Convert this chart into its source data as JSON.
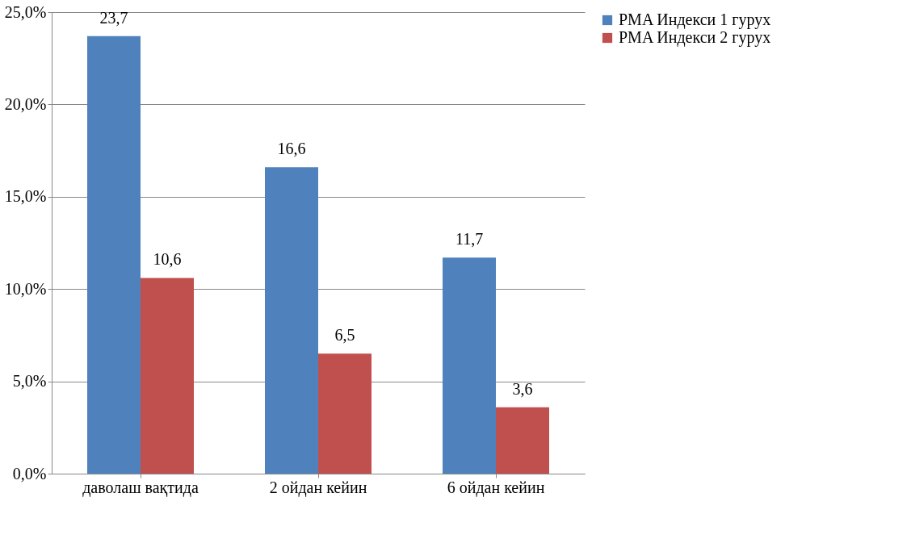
{
  "chart_data": {
    "type": "bar",
    "categories": [
      "даволаш вақтида",
      "2 ойдан кейин",
      "6 ойдан кейин"
    ],
    "series": [
      {
        "name": "PMA  Индекси  1 гурух",
        "color": "#4f81bd",
        "values": [
          23.7,
          16.6,
          11.7
        ],
        "value_labels": [
          "23,7",
          "16,6",
          "11,7"
        ]
      },
      {
        "name": "PMA  Индекси  2 гурух",
        "color": "#c0504d",
        "values": [
          10.6,
          6.5,
          3.6
        ],
        "value_labels": [
          "10,6",
          "6,5",
          "3,6"
        ]
      }
    ],
    "ylim": [
      0,
      25
    ],
    "yticks": [
      {
        "value": 0,
        "label": "0,0%"
      },
      {
        "value": 5,
        "label": "5,0%"
      },
      {
        "value": 10,
        "label": "10,0%"
      },
      {
        "value": 15,
        "label": "15,0%"
      },
      {
        "value": 20,
        "label": "20,0%"
      },
      {
        "value": 25,
        "label": "25,0%"
      }
    ],
    "grid": "y",
    "legend": "right"
  }
}
